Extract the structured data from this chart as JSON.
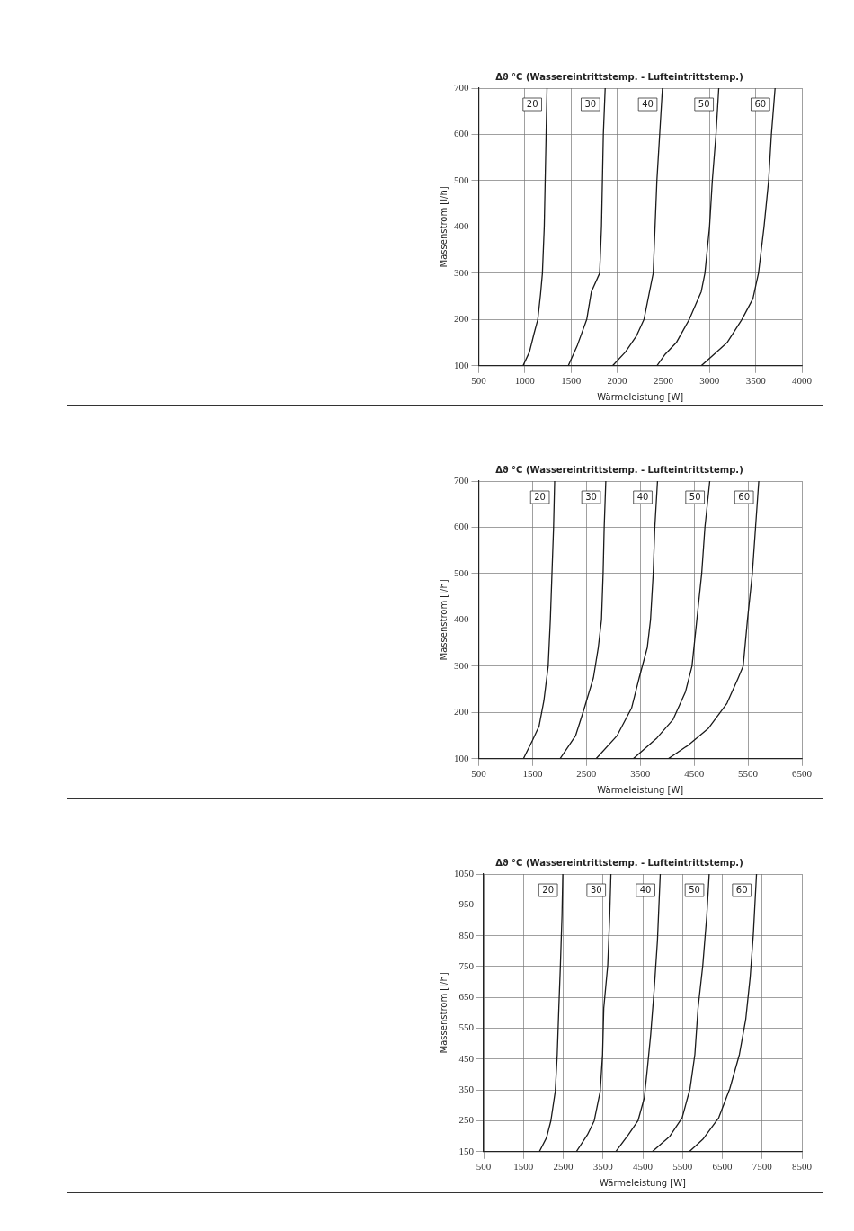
{
  "chart_data": [
    {
      "type": "line",
      "title": "Δϑ °C (Wassereintrittstemp. - Lufteintrittstemp.)",
      "xlabel": "Wärmeleistung [W]",
      "ylabel": "Massenstrom [l/h]",
      "xlim": [
        500,
        4000
      ],
      "xticks": [
        500,
        1000,
        1500,
        2000,
        2500,
        3000,
        3500,
        4000
      ],
      "ylim": [
        100,
        700
      ],
      "yticks": [
        100,
        200,
        300,
        400,
        500,
        600,
        700
      ],
      "grid": true,
      "legend": false,
      "marker": "none",
      "line_style": "solid",
      "series": [
        {
          "name": "20",
          "color": "#1a1a1a",
          "x": [
            980,
            1050,
            1100,
            1140,
            1170,
            1190,
            1210,
            1220,
            1230,
            1240
          ],
          "values": [
            100,
            130,
            170,
            200,
            255,
            300,
            400,
            500,
            600,
            700
          ]
        },
        {
          "name": "30",
          "color": "#1a1a1a",
          "x": [
            1470,
            1570,
            1670,
            1720,
            1810,
            1830,
            1840,
            1850,
            1870
          ],
          "values": [
            100,
            145,
            200,
            260,
            300,
            400,
            500,
            600,
            700
          ]
        },
        {
          "name": "40",
          "color": "#1a1a1a",
          "x": [
            1950,
            2090,
            2210,
            2290,
            2350,
            2390,
            2410,
            2430,
            2460,
            2490
          ],
          "values": [
            100,
            130,
            165,
            200,
            260,
            300,
            400,
            500,
            600,
            700
          ]
        },
        {
          "name": "50",
          "color": "#1a1a1a",
          "x": [
            2430,
            2520,
            2640,
            2780,
            2910,
            2950,
            3000,
            3030,
            3070,
            3100
          ],
          "values": [
            100,
            125,
            150,
            200,
            260,
            300,
            400,
            500,
            600,
            700
          ]
        },
        {
          "name": "60",
          "color": "#1a1a1a",
          "x": [
            2910,
            3050,
            3190,
            3350,
            3470,
            3530,
            3590,
            3640,
            3670,
            3710
          ],
          "values": [
            100,
            125,
            150,
            200,
            245,
            300,
            400,
            500,
            600,
            700
          ]
        }
      ]
    },
    {
      "type": "line",
      "title": "Δϑ °C (Wassereintrittstemp. - Lufteintrittstemp.)",
      "xlabel": "Wärmeleistung [W]",
      "ylabel": "Massenstrom [l/h]",
      "xlim": [
        500,
        6500
      ],
      "xticks": [
        500,
        1500,
        2500,
        3500,
        4500,
        5500,
        6500
      ],
      "ylim": [
        100,
        700
      ],
      "yticks": [
        100,
        200,
        300,
        400,
        500,
        600,
        700
      ],
      "grid": true,
      "legend": false,
      "marker": "none",
      "line_style": "solid",
      "series": [
        {
          "name": "20",
          "color": "#1a1a1a",
          "x": [
            1330,
            1500,
            1620,
            1710,
            1790,
            1830,
            1860,
            1890,
            1910
          ],
          "values": [
            100,
            140,
            170,
            225,
            300,
            400,
            500,
            600,
            700
          ]
        },
        {
          "name": "30",
          "color": "#1a1a1a",
          "x": [
            2010,
            2300,
            2450,
            2630,
            2720,
            2780,
            2810,
            2830,
            2860
          ],
          "values": [
            100,
            150,
            205,
            275,
            340,
            400,
            500,
            600,
            700
          ]
        },
        {
          "name": "40",
          "color": "#1a1a1a",
          "x": [
            2680,
            3070,
            3340,
            3480,
            3630,
            3690,
            3740,
            3770,
            3820
          ],
          "values": [
            100,
            150,
            210,
            275,
            340,
            400,
            500,
            600,
            700
          ]
        },
        {
          "name": "50",
          "color": "#1a1a1a",
          "x": [
            3370,
            3810,
            4110,
            4340,
            4460,
            4550,
            4640,
            4700,
            4790
          ],
          "values": [
            100,
            145,
            185,
            245,
            300,
            400,
            500,
            600,
            700
          ]
        },
        {
          "name": "60",
          "color": "#1a1a1a",
          "x": [
            4020,
            4400,
            4760,
            5110,
            5320,
            5410,
            5490,
            5580,
            5640,
            5700
          ],
          "values": [
            100,
            130,
            165,
            220,
            275,
            300,
            400,
            500,
            600,
            700
          ]
        }
      ]
    },
    {
      "type": "line",
      "title": "Δϑ °C (Wassereintrittstemp. - Lufteintrittstemp.)",
      "xlabel": "Wärmeleistung [W]",
      "ylabel": "Massenstrom [l/h]",
      "xlim": [
        500,
        8500
      ],
      "xticks": [
        500,
        1500,
        2500,
        3500,
        4500,
        5500,
        6500,
        7500,
        8500
      ],
      "ylim": [
        150,
        1050
      ],
      "yticks": [
        150,
        250,
        350,
        450,
        550,
        650,
        750,
        850,
        950,
        1050
      ],
      "grid": true,
      "legend": false,
      "marker": "none",
      "line_style": "solid",
      "series": [
        {
          "name": "20",
          "color": "#1a1a1a",
          "x": [
            1900,
            2080,
            2190,
            2300,
            2350,
            2390,
            2430,
            2470,
            2490
          ],
          "values": [
            150,
            195,
            250,
            345,
            465,
            615,
            755,
            915,
            1050
          ]
        },
        {
          "name": "30",
          "color": "#1a1a1a",
          "x": [
            2830,
            3110,
            3280,
            3430,
            3490,
            3520,
            3620,
            3670,
            3700
          ],
          "values": [
            150,
            205,
            250,
            345,
            465,
            615,
            755,
            915,
            1050
          ]
        },
        {
          "name": "40",
          "color": "#1a1a1a",
          "x": [
            3820,
            4140,
            4380,
            4540,
            4620,
            4700,
            4790,
            4870,
            4940
          ],
          "values": [
            150,
            205,
            250,
            325,
            425,
            530,
            680,
            835,
            1050
          ]
        },
        {
          "name": "50",
          "color": "#1a1a1a",
          "x": [
            4740,
            5180,
            5490,
            5690,
            5810,
            5890,
            6010,
            6110,
            6170
          ],
          "values": [
            150,
            200,
            260,
            355,
            465,
            615,
            755,
            915,
            1050
          ]
        },
        {
          "name": "60",
          "color": "#1a1a1a",
          "x": [
            5670,
            6010,
            6410,
            6690,
            6930,
            7090,
            7200,
            7280,
            7360
          ],
          "values": [
            150,
            190,
            260,
            355,
            465,
            580,
            715,
            855,
            1050
          ]
        }
      ]
    }
  ]
}
